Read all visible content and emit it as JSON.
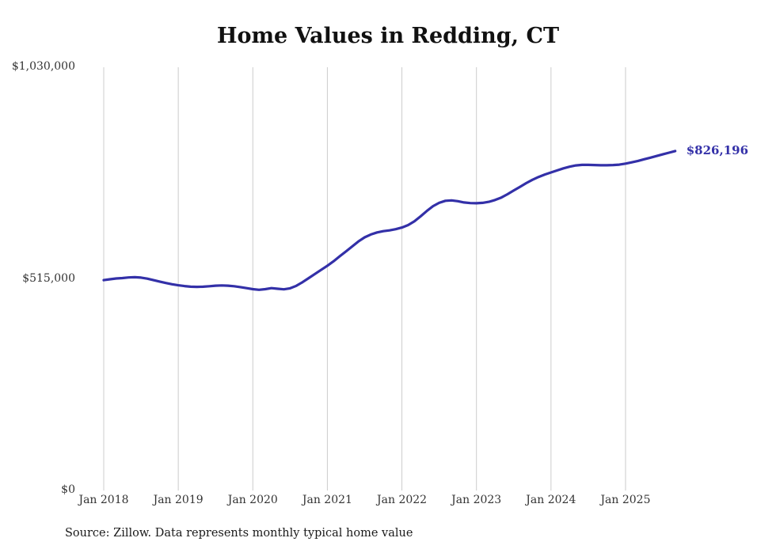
{
  "title": "Home Values in Redding, CT",
  "source_note": "Source: Zillow. Data represents monthly typical home value",
  "end_label": "$826,196",
  "colors": {
    "line": "#3330a8",
    "grid": "#cccccc",
    "end_label": "#3330a8"
  },
  "chart_data": {
    "type": "line",
    "title": "Home Values in Redding, CT",
    "x_start": "2018-01",
    "x_interval": "monthly",
    "values": [
      512000,
      514000,
      516000,
      517000,
      518500,
      519000,
      518000,
      515500,
      512000,
      508500,
      505000,
      502000,
      499500,
      497500,
      496000,
      495500,
      496000,
      497000,
      498500,
      499000,
      498500,
      497000,
      495000,
      492500,
      490000,
      488500,
      490000,
      492500,
      491000,
      489500,
      492000,
      498000,
      507000,
      517000,
      527000,
      537000,
      547000,
      558000,
      570000,
      582000,
      594000,
      606000,
      616000,
      623000,
      628000,
      631000,
      633000,
      636000,
      640000,
      646000,
      655000,
      667000,
      680000,
      692000,
      700000,
      705000,
      706000,
      704000,
      701000,
      699500,
      699000,
      700000,
      702500,
      707000,
      713000,
      721000,
      730000,
      739000,
      748000,
      756000,
      763000,
      769000,
      774000,
      779000,
      784000,
      788000,
      791000,
      792500,
      792500,
      792000,
      791500,
      791500,
      792000,
      793000,
      795500,
      798500,
      802000,
      806000,
      810000,
      814000,
      818000,
      822000,
      826196
    ],
    "last_value": 826196,
    "ylim": [
      0,
      1030000
    ],
    "y_ticks": [
      {
        "value": 0,
        "label": "$0"
      },
      {
        "value": 515000,
        "label": "$515,000"
      },
      {
        "value": 1030000,
        "label": "$1,030,000"
      }
    ],
    "x_ticks": [
      {
        "month_index": 0,
        "label": "Jan 2018"
      },
      {
        "month_index": 12,
        "label": "Jan 2019"
      },
      {
        "month_index": 24,
        "label": "Jan 2020"
      },
      {
        "month_index": 36,
        "label": "Jan 2021"
      },
      {
        "month_index": 48,
        "label": "Jan 2022"
      },
      {
        "month_index": 60,
        "label": "Jan 2023"
      },
      {
        "month_index": 72,
        "label": "Jan 2024"
      },
      {
        "month_index": 84,
        "label": "Jan 2025"
      }
    ],
    "grid": "vertical-only",
    "legend": "none",
    "annotation": "$826,196"
  }
}
